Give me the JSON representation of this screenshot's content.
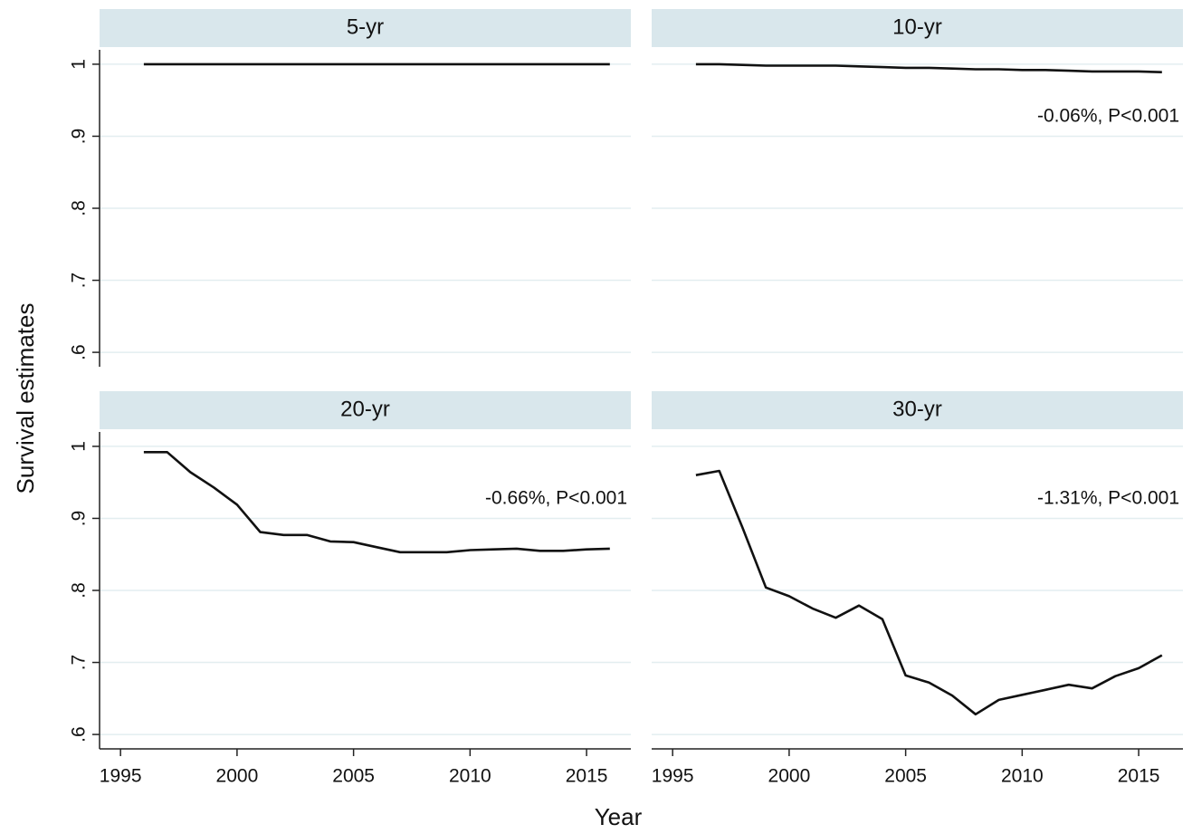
{
  "chart_data": [
    {
      "type": "line",
      "title": "5-yr",
      "color": "#111111",
      "x": [
        1996,
        1997,
        1998,
        1999,
        2000,
        2001,
        2002,
        2003,
        2004,
        2005,
        2006,
        2007,
        2008,
        2009,
        2010,
        2011,
        2012,
        2013,
        2014,
        2015,
        2016
      ],
      "values": [
        1,
        1,
        1,
        1,
        1,
        1,
        1,
        1,
        1,
        1,
        1,
        1,
        1,
        1,
        1,
        1,
        1,
        1,
        1,
        1,
        1
      ]
    },
    {
      "type": "line",
      "title": "10-yr",
      "color": "#111111",
      "annotation": "-0.06%, P<0.001",
      "x": [
        1996,
        1997,
        1998,
        1999,
        2000,
        2001,
        2002,
        2003,
        2004,
        2005,
        2006,
        2007,
        2008,
        2009,
        2010,
        2011,
        2012,
        2013,
        2014,
        2015,
        2016
      ],
      "values": [
        1,
        1,
        0.999,
        0.998,
        0.998,
        0.998,
        0.998,
        0.997,
        0.996,
        0.995,
        0.995,
        0.994,
        0.993,
        0.993,
        0.992,
        0.992,
        0.991,
        0.99,
        0.99,
        0.99,
        0.989
      ]
    },
    {
      "type": "line",
      "title": "20-yr",
      "color": "#111111",
      "annotation": "-0.66%, P<0.001",
      "x": [
        1996,
        1997,
        1998,
        1999,
        2000,
        2001,
        2002,
        2003,
        2004,
        2005,
        2006,
        2007,
        2008,
        2009,
        2010,
        2011,
        2012,
        2013,
        2014,
        2015,
        2016
      ],
      "values": [
        0.992,
        0.992,
        0.964,
        0.943,
        0.919,
        0.881,
        0.877,
        0.877,
        0.868,
        0.867,
        0.86,
        0.853,
        0.853,
        0.853,
        0.856,
        0.857,
        0.858,
        0.855,
        0.855,
        0.857,
        0.858
      ]
    },
    {
      "type": "line",
      "title": "30-yr",
      "color": "#111111",
      "annotation": "-1.31%, P<0.001",
      "x": [
        1996,
        1997,
        1998,
        1999,
        2000,
        2001,
        2002,
        2003,
        2004,
        2005,
        2006,
        2007,
        2008,
        2009,
        2010,
        2011,
        2012,
        2013,
        2014,
        2015,
        2016
      ],
      "values": [
        0.96,
        0.966,
        0.887,
        0.804,
        0.792,
        0.775,
        0.762,
        0.779,
        0.76,
        0.682,
        0.672,
        0.654,
        0.628,
        0.648,
        0.655,
        0.662,
        0.669,
        0.664,
        0.681,
        0.692,
        0.71
      ]
    }
  ],
  "y_label": "Survival estimates",
  "x_label": "Year",
  "xlim": [
    1994.1,
    2016.9
  ],
  "xticks": [
    1995,
    2000,
    2005,
    2010,
    2015
  ],
  "ylim": [
    0.58,
    1.02
  ],
  "yticks": [
    {
      "value": 0.6,
      "label": ".6"
    },
    {
      "value": 0.7,
      "label": ".7"
    },
    {
      "value": 0.8,
      "label": ".8"
    },
    {
      "value": 0.9,
      "label": ".9"
    },
    1
  ],
  "grid": true
}
